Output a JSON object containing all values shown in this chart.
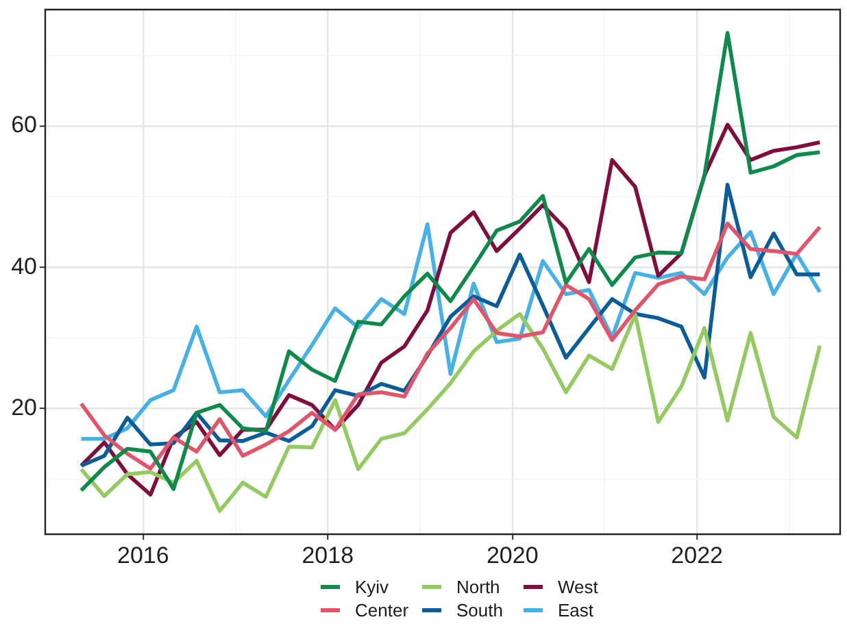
{
  "chart_data": {
    "type": "line",
    "legend": "bottom",
    "grid": true,
    "marker": "none",
    "x": [
      2015.33,
      2015.58,
      2015.83,
      2016.08,
      2016.33,
      2016.58,
      2016.83,
      2017.08,
      2017.33,
      2017.58,
      2017.83,
      2018.08,
      2018.33,
      2018.58,
      2018.83,
      2019.08,
      2019.33,
      2019.58,
      2019.83,
      2020.08,
      2020.33,
      2020.58,
      2020.83,
      2021.08,
      2021.33,
      2021.58,
      2021.83,
      2022.08,
      2022.33,
      2022.58,
      2022.83,
      2023.08,
      2023.33
    ],
    "xlim": [
      2014.94,
      2023.55
    ],
    "xticks": [
      2016,
      {
        "value": 2017,
        "label": null
      },
      2018,
      {
        "value": 2019,
        "label": null
      },
      2020,
      {
        "value": 2021,
        "label": null
      },
      2022,
      {
        "value": 2023,
        "label": null
      }
    ],
    "ylim": [
      2.2,
      76.5
    ],
    "yticks": [
      {
        "value": 10,
        "label": null
      },
      20,
      {
        "value": 30,
        "label": null
      },
      40,
      {
        "value": 50,
        "label": null
      },
      60,
      {
        "value": 70,
        "label": null
      }
    ],
    "series": [
      {
        "name": "Kyiv",
        "color": "#0e8a4b",
        "values": [
          8.4,
          11.7,
          14.3,
          13.9,
          8.6,
          19.4,
          20.5,
          17.2,
          16.8,
          28.1,
          25.5,
          23.9,
          32.3,
          31.9,
          35.9,
          39.1,
          35.2,
          40.1,
          45.2,
          46.5,
          50.1,
          37.8,
          42.6,
          37.5,
          41.4,
          42.1,
          42.0,
          53.0,
          73.2,
          53.4,
          54.3,
          55.9,
          56.3
        ]
      },
      {
        "name": "Center",
        "color": "#e2546a",
        "values": [
          20.7,
          16.2,
          13.6,
          11.5,
          15.9,
          13.9,
          18.5,
          13.3,
          14.9,
          16.8,
          19.4,
          17.0,
          22.0,
          22.3,
          21.7,
          27.8,
          31.4,
          35.5,
          30.7,
          30.2,
          30.8,
          37.5,
          35.5,
          29.7,
          33.9,
          37.6,
          38.7,
          38.3,
          46.2,
          42.6,
          42.3,
          41.9,
          45.7
        ]
      },
      {
        "name": "North",
        "color": "#93cb60",
        "values": [
          11.4,
          7.6,
          10.7,
          11.0,
          9.5,
          12.6,
          5.5,
          9.5,
          7.5,
          14.6,
          14.5,
          21.2,
          11.4,
          15.7,
          16.5,
          19.9,
          23.6,
          28.1,
          31.0,
          33.4,
          28.5,
          22.3,
          27.5,
          25.6,
          33.3,
          18.1,
          23.1,
          31.4,
          18.3,
          30.7,
          18.8,
          15.9,
          28.9
        ]
      },
      {
        "name": "South",
        "color": "#0b5d99",
        "values": [
          11.9,
          13.3,
          18.7,
          14.9,
          15.1,
          19.4,
          15.5,
          15.4,
          16.6,
          15.4,
          17.5,
          22.6,
          21.8,
          23.5,
          22.5,
          27.5,
          33.0,
          35.9,
          34.5,
          41.8,
          34.6,
          27.2,
          31.4,
          35.5,
          33.4,
          32.8,
          31.6,
          24.4,
          51.7,
          38.6,
          44.8,
          39.0,
          39.0
        ]
      },
      {
        "name": "West",
        "color": "#800d3c",
        "values": [
          11.9,
          15.2,
          10.7,
          7.8,
          15.9,
          18.1,
          13.4,
          17.0,
          17.0,
          21.9,
          20.5,
          17.0,
          20.5,
          26.5,
          28.8,
          33.9,
          44.9,
          47.8,
          42.3,
          45.5,
          48.8,
          45.4,
          37.9,
          55.2,
          51.4,
          38.8,
          42.0,
          53.0,
          60.2,
          55.2,
          56.5,
          57.0,
          57.7
        ]
      },
      {
        "name": "East",
        "color": "#45b1e6",
        "values": [
          15.7,
          15.7,
          17.2,
          21.2,
          22.6,
          31.6,
          22.3,
          22.6,
          18.9,
          24.0,
          29.0,
          34.2,
          31.5,
          35.5,
          33.4,
          46.1,
          24.9,
          37.7,
          29.4,
          29.9,
          40.9,
          36.2,
          36.8,
          30.1,
          39.2,
          38.5,
          39.2,
          36.2,
          41.4,
          45.0,
          36.2,
          41.9,
          36.5
        ]
      }
    ]
  }
}
